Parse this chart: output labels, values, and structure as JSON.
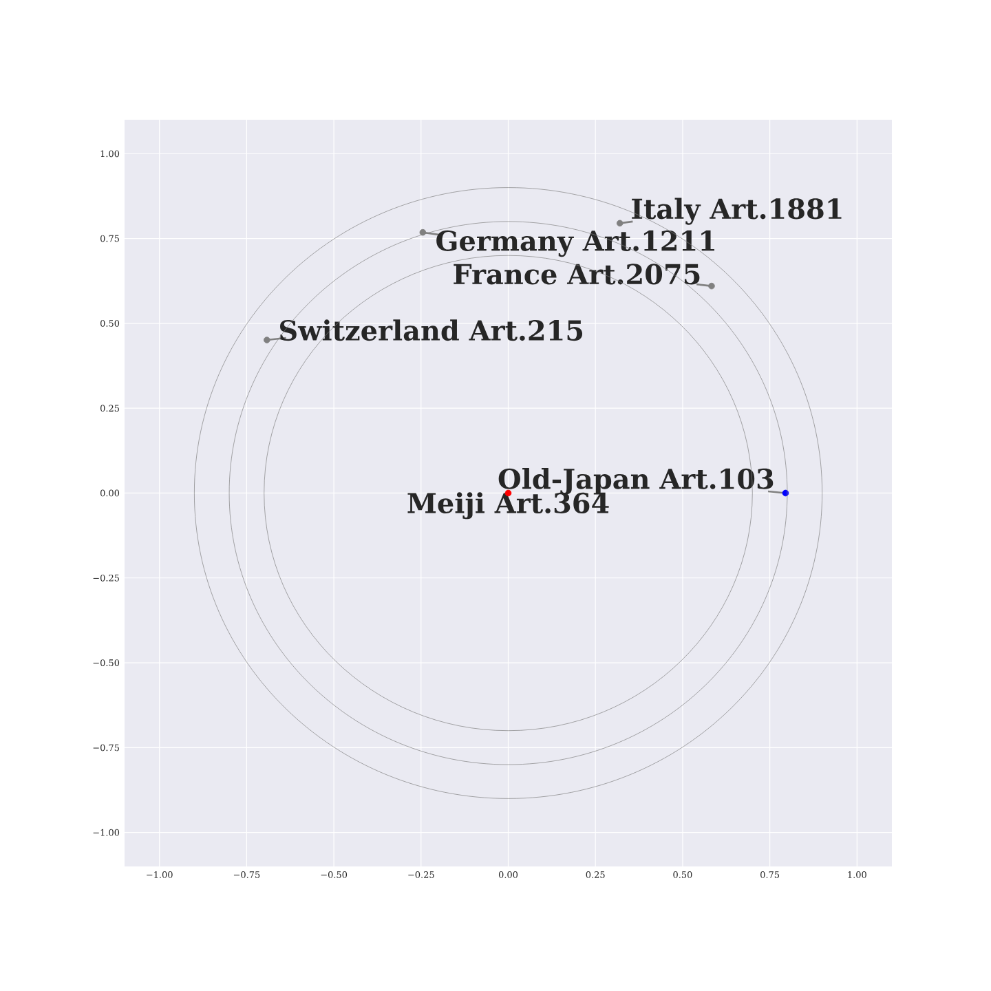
{
  "chart_data": {
    "type": "scatter",
    "xlim": [
      -1.1,
      1.1
    ],
    "ylim": [
      -1.1,
      1.1
    ],
    "xticks": [
      {
        "value": -1,
        "label": "−1.00"
      },
      {
        "value": -0.75,
        "label": "−0.75"
      },
      {
        "value": -0.5,
        "label": "−0.50"
      },
      {
        "value": -0.25,
        "label": "−0.25"
      },
      {
        "value": 0,
        "label": "0.00"
      },
      {
        "value": 0.25,
        "label": "0.25"
      },
      {
        "value": 0.5,
        "label": "0.50"
      },
      {
        "value": 0.75,
        "label": "0.75"
      },
      {
        "value": 1,
        "label": "1.00"
      }
    ],
    "yticks": [
      {
        "value": -1,
        "label": "−1.00"
      },
      {
        "value": -0.75,
        "label": "−0.75"
      },
      {
        "value": -0.5,
        "label": "−0.50"
      },
      {
        "value": -0.25,
        "label": "−0.25"
      },
      {
        "value": 0,
        "label": "0.00"
      },
      {
        "value": 0.25,
        "label": "0.25"
      },
      {
        "value": 0.5,
        "label": "0.50"
      },
      {
        "value": 0.75,
        "label": "0.75"
      },
      {
        "value": 1,
        "label": "1.00"
      }
    ],
    "grid": true,
    "series": [
      {
        "type": "scatter",
        "marker": "circle",
        "x": [
          0.32,
          -0.245,
          0.583,
          -0.692,
          0.795,
          0
        ],
        "values": [
          0.795,
          0.768,
          0.61,
          0.451,
          0,
          0
        ],
        "colors": [
          "#808080",
          "#808080",
          "#808080",
          "#808080",
          "#0000ff",
          "#ff0000"
        ]
      }
    ],
    "annotations": [
      {
        "text": "Italy Art.1881",
        "x": 0.32,
        "y": 0.795
      },
      {
        "text": "Germany Art.1211",
        "x": -0.245,
        "y": 0.768
      },
      {
        "text": "France Art.2075",
        "x": 0.583,
        "y": 0.61
      },
      {
        "text": "Switzerland Art.215",
        "x": -0.692,
        "y": 0.451
      },
      {
        "text": "Old-Japan Art.103",
        "x": 0.795,
        "y": 0
      },
      {
        "text": "Meiji Art.364",
        "x": 0,
        "y": 0
      }
    ]
  }
}
